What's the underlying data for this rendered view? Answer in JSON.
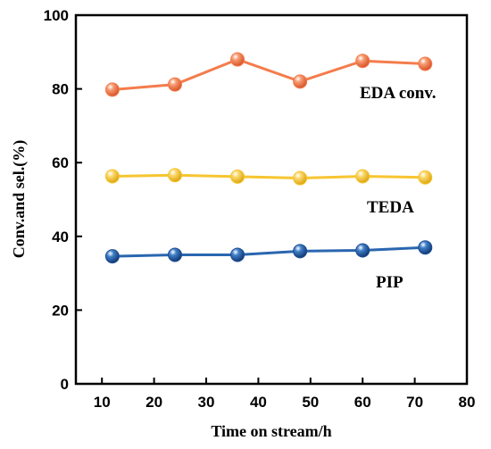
{
  "chart_data": {
    "type": "line",
    "xlabel": "Time on stream/h",
    "ylabel": "Conv.and sel.(%)",
    "xlim": [
      5,
      80
    ],
    "ylim": [
      0,
      100
    ],
    "x_ticks": [
      10,
      20,
      30,
      40,
      50,
      60,
      70,
      80
    ],
    "y_ticks": [
      0,
      20,
      40,
      60,
      80,
      100
    ],
    "x": [
      12,
      24,
      36,
      48,
      60,
      72
    ],
    "grid": false,
    "legend": "none",
    "series": [
      {
        "name": "EDA conv.",
        "values": [
          79.8,
          81.2,
          88.0,
          82.0,
          87.6,
          86.8
        ],
        "color": "#f47c4c",
        "marker_color": "#f47c4c"
      },
      {
        "name": "TEDA",
        "values": [
          56.3,
          56.6,
          56.2,
          55.8,
          56.3,
          56.0
        ],
        "color": "#f7c530",
        "marker_color": "#f7c530"
      },
      {
        "name": "PIP",
        "values": [
          34.6,
          35.0,
          35.0,
          36.0,
          36.2,
          37.0
        ],
        "color": "#2a66b0",
        "marker_color": "#1f4e90"
      }
    ]
  }
}
